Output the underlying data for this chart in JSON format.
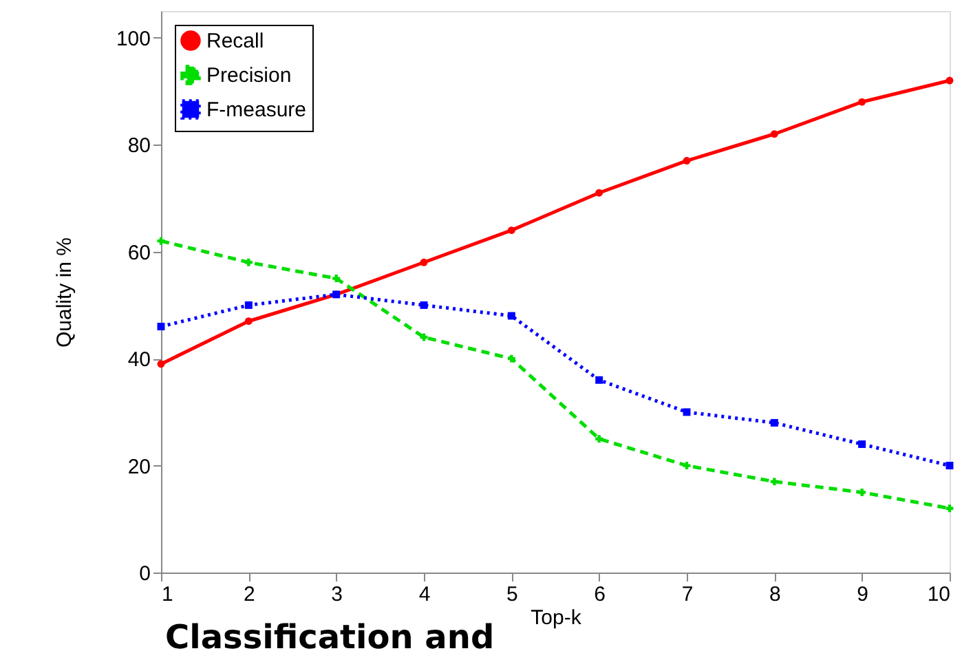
{
  "chart_data": {
    "type": "line",
    "xlabel": "Top-k",
    "ylabel": "Quality in %",
    "x": [
      1,
      2,
      3,
      4,
      5,
      6,
      7,
      8,
      9,
      10
    ],
    "series": [
      {
        "name": "Recall",
        "color": "#ff0000",
        "marker": "circle",
        "line_style": "solid",
        "values": [
          39,
          47,
          52,
          58,
          64,
          71,
          77,
          82,
          88,
          92
        ]
      },
      {
        "name": "Precision",
        "color": "#00dd00",
        "marker": "cross",
        "line_style": "dashed",
        "values": [
          62,
          58,
          55,
          44,
          40,
          25,
          20,
          17,
          15,
          12
        ]
      },
      {
        "name": "F-measure",
        "color": "#0000ff",
        "marker": "square",
        "line_style": "dotted",
        "values": [
          46,
          50,
          52,
          50,
          48,
          36,
          30,
          28,
          24,
          20
        ]
      }
    ],
    "xlim": [
      1,
      10
    ],
    "xticks": [
      1,
      2,
      3,
      4,
      5,
      6,
      7,
      8,
      9,
      10
    ],
    "ylim": [
      0,
      105
    ],
    "yticks": [
      0,
      20,
      40,
      60,
      80,
      100
    ],
    "grid": false,
    "legend": "top left",
    "annotations": [
      "Classification and"
    ]
  }
}
